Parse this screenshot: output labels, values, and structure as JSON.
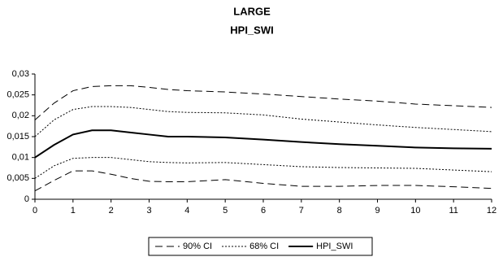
{
  "chart_data": {
    "type": "line",
    "title": "LARGE",
    "subtitle": "HPI_SWI",
    "x": [
      0,
      0.5,
      1,
      1.5,
      2,
      2.5,
      3,
      3.5,
      4,
      5,
      6,
      7,
      8,
      9,
      10,
      11,
      12
    ],
    "series": [
      {
        "name": "90% CI",
        "color": "#000000",
        "dash": "dashed",
        "values": [
          0.019,
          0.023,
          0.026,
          0.027,
          0.0272,
          0.0272,
          0.0268,
          0.0263,
          0.026,
          0.0257,
          0.0252,
          0.0246,
          0.024,
          0.0235,
          0.0228,
          0.0224,
          0.022
        ],
        "lower": [
          0.002,
          0.0045,
          0.0068,
          0.0068,
          0.006,
          0.005,
          0.0043,
          0.0042,
          0.0042,
          0.0047,
          0.0038,
          0.0031,
          0.0031,
          0.0033,
          0.0033,
          0.003,
          0.0026
        ]
      },
      {
        "name": "68% CI",
        "color": "#000000",
        "dash": "dotted",
        "values": [
          0.015,
          0.019,
          0.0215,
          0.0222,
          0.0222,
          0.022,
          0.0215,
          0.021,
          0.0208,
          0.0207,
          0.0202,
          0.0192,
          0.0185,
          0.0178,
          0.0172,
          0.0167,
          0.0162
        ],
        "lower": [
          0.005,
          0.008,
          0.0098,
          0.01,
          0.01,
          0.0095,
          0.009,
          0.0088,
          0.0087,
          0.0088,
          0.0083,
          0.0078,
          0.0076,
          0.0075,
          0.0074,
          0.007,
          0.0066
        ]
      },
      {
        "name": "HPI_SWI",
        "color": "#000000",
        "dash": "solid",
        "values": [
          0.01,
          0.013,
          0.0155,
          0.0165,
          0.0165,
          0.016,
          0.0155,
          0.015,
          0.015,
          0.0148,
          0.0143,
          0.0137,
          0.0132,
          0.0128,
          0.0124,
          0.0122,
          0.0121
        ]
      }
    ],
    "xlim": [
      0,
      12
    ],
    "xticks": [
      0,
      1,
      2,
      3,
      4,
      5,
      6,
      7,
      8,
      9,
      10,
      11,
      12
    ],
    "ylim": [
      0,
      0.03
    ],
    "yticks": [
      0,
      {
        "value": 0.005,
        "label": "0,005"
      },
      {
        "value": 0.01,
        "label": "0,01"
      },
      {
        "value": 0.015,
        "label": "0,015"
      },
      {
        "value": 0.02,
        "label": "0,02"
      },
      {
        "value": 0.025,
        "label": "0,025"
      },
      {
        "value": 0.03,
        "label": "0,03"
      }
    ],
    "grid": false,
    "legend": "bottom"
  }
}
